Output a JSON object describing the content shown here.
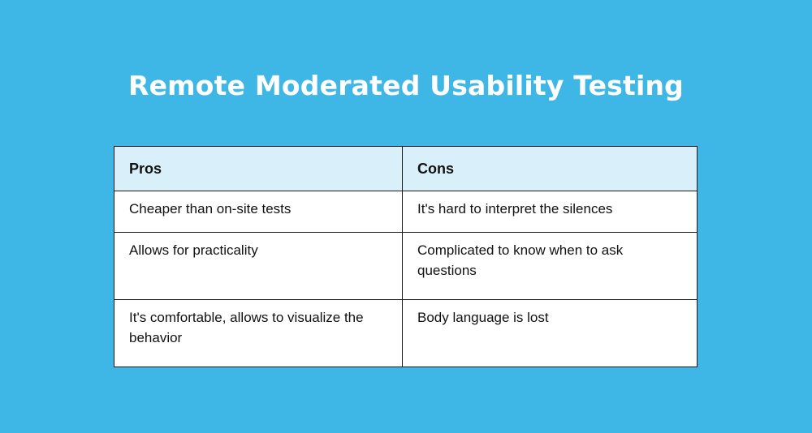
{
  "title": "Remote Moderated Usability Testing",
  "table": {
    "headers": [
      "Pros",
      "Cons"
    ],
    "rows": [
      [
        "Cheaper than on-site tests",
        "It's hard to interpret the silences"
      ],
      [
        "Allows for practicality",
        "Complicated to know when to ask questions"
      ],
      [
        "It's comfortable, allows to visualize the behavior",
        "Body language is lost"
      ]
    ]
  },
  "colors": {
    "background": "#3fb7e6",
    "header": "#d9f0fb"
  }
}
